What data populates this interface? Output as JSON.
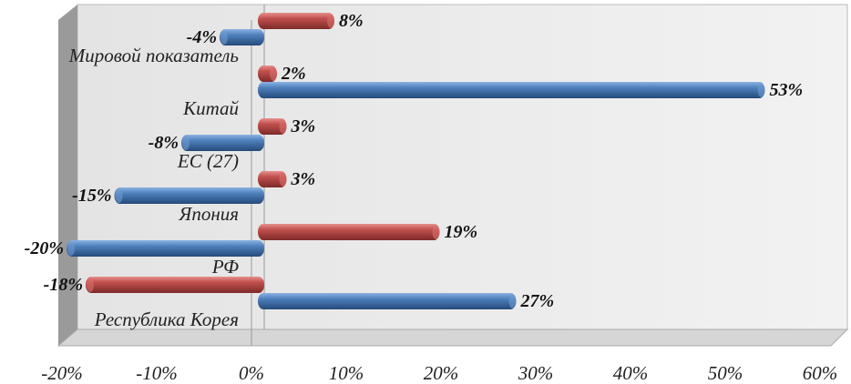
{
  "chart_data": {
    "type": "bar",
    "orientation": "horizontal",
    "style": "3d-cylinder",
    "categories": [
      "Мировой показатель",
      "Китай",
      "ЕС (27)",
      "Япония",
      "РФ",
      "Республика Корея"
    ],
    "series": [
      {
        "color": "#c0504d",
        "values": [
          8,
          2,
          3,
          3,
          19,
          -18
        ]
      },
      {
        "color": "#4f81bd",
        "values": [
          -4,
          53,
          -8,
          -15,
          -20,
          27
        ]
      }
    ],
    "data_labels": [
      [
        "8%",
        "2%",
        "3%",
        "3%",
        "19%",
        "-18%"
      ],
      [
        "-4%",
        "53%",
        "-8%",
        "-15%",
        "-20%",
        "27%"
      ]
    ],
    "xlim": [
      -20,
      60
    ],
    "x_ticks": [
      "-20%",
      "-10%",
      "0%",
      "10%",
      "20%",
      "30%",
      "40%",
      "50%",
      "60%"
    ],
    "grid": false,
    "legend": "none"
  }
}
